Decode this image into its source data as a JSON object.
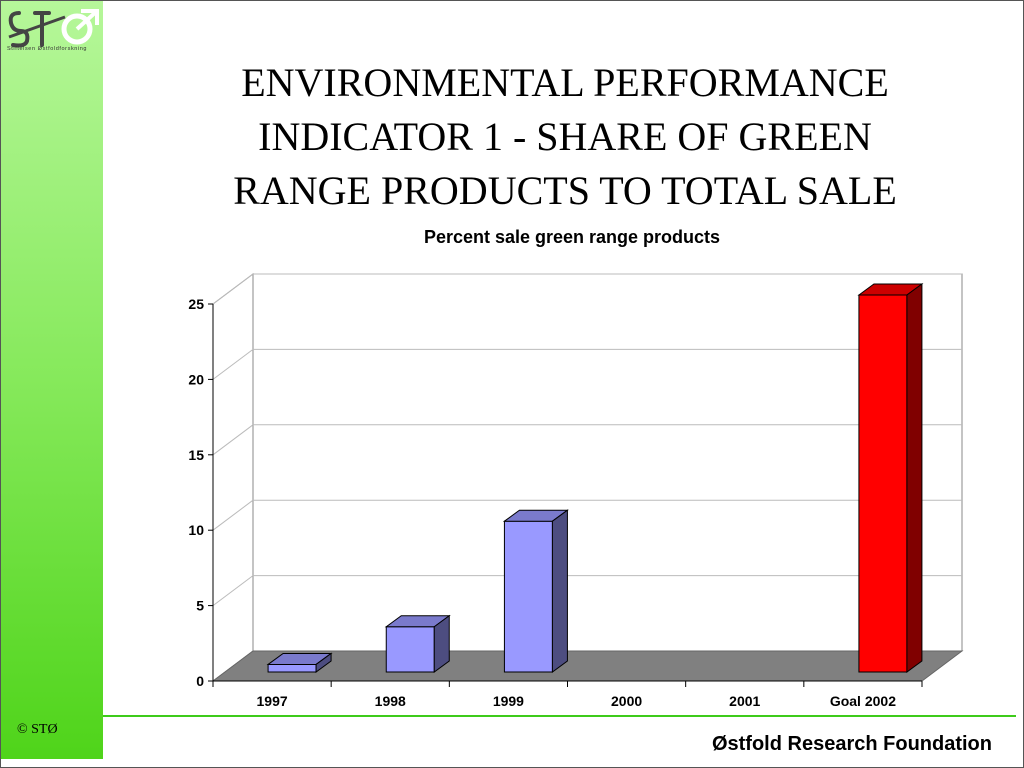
{
  "slide": {
    "title_lines": [
      "ENVIRONMENTAL PERFORMANCE",
      "INDICATOR 1 - SHARE OF GREEN",
      "RANGE PRODUCTS TO TOTAL SALE"
    ],
    "logo_text": "STØ",
    "logo_caption": "Stiftelsen Østfoldforskning",
    "copyright": "© STØ",
    "footer": "Østfold Research Foundation"
  },
  "colors": {
    "bar_actual": "#9999ff",
    "bar_goal": "#ff0000",
    "sidebar_top": "#b6f79a",
    "sidebar_bottom": "#4fd41a",
    "footer_line": "#3ecb1a"
  },
  "chart_data": {
    "type": "bar",
    "title": "Percent sale green range products",
    "categories": [
      "1997",
      "1998",
      "1999",
      "2000",
      "2001",
      "Goal 2002"
    ],
    "values": [
      0.5,
      3,
      10,
      null,
      null,
      25
    ],
    "bar_colors": [
      "#9999ff",
      "#9999ff",
      "#9999ff",
      "#9999ff",
      "#9999ff",
      "#ff0000"
    ],
    "ylim": [
      0,
      25
    ],
    "yticks": [
      "0",
      "5",
      "10",
      "15",
      "20",
      "25"
    ],
    "grid": true,
    "legend": "none",
    "style": "3d"
  }
}
